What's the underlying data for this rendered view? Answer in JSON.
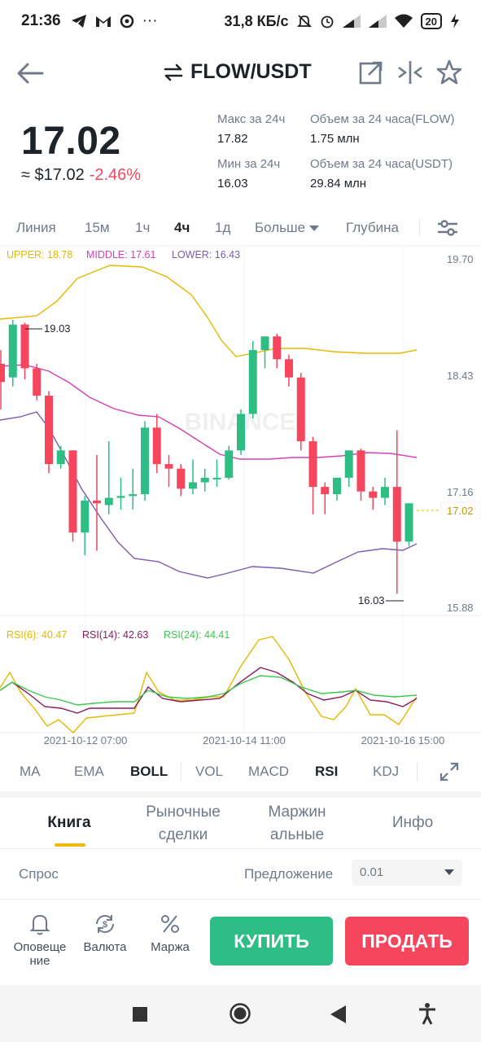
{
  "status_bar": {
    "time": "21:36",
    "more": "···",
    "speed": "31,8 КБ/с",
    "battery": "20"
  },
  "header": {
    "pair": "FLOW/USDT"
  },
  "price": {
    "last": "17.02",
    "fiat": "≈ $17.02",
    "change": "-2.46%"
  },
  "stats": {
    "high_label": "Макс за 24ч",
    "high_value": "17.82",
    "low_label": "Мин за 24ч",
    "low_value": "16.03",
    "vol_flow_label": "Объем за 24 часа(FLOW)",
    "vol_flow_value": "1.75 млн",
    "vol_usdt_label": "Объем за 24 часа(USDT)",
    "vol_usdt_value": "29.84 млн"
  },
  "intervals": {
    "line": "Линия",
    "m15": "15м",
    "h1": "1ч",
    "h4": "4ч",
    "d1": "1д",
    "more": "Больше",
    "depth": "Глубина"
  },
  "chart_data": {
    "type": "candlestick",
    "watermark": "BINANCE",
    "boll": {
      "upper_label": "UPPER: 18.78",
      "middle_label": "MIDDLE: 17.61",
      "lower_label": "LOWER: 16.43"
    },
    "price_axis": [
      "19.70",
      "18.43",
      "17.16",
      "15.88"
    ],
    "price_range": [
      15.88,
      19.7
    ],
    "last_price": "17.02",
    "high_marker": "19.03",
    "low_marker": "16.03",
    "rsi": {
      "rsi6_label": "RSI(6): 40.47",
      "rsi14_label": "RSI(14): 42.63",
      "rsi24_label": "RSI(24): 44.41"
    },
    "time_axis": [
      "2021-10-12 07:00",
      "2021-10-14 11:00",
      "2021-10-16 15:00"
    ],
    "candles": [
      {
        "o": 18.55,
        "h": 18.7,
        "l": 18.05,
        "c": 18.35
      },
      {
        "o": 18.4,
        "h": 19.03,
        "l": 18.3,
        "c": 18.98
      },
      {
        "o": 18.98,
        "h": 19.0,
        "l": 18.38,
        "c": 18.5
      },
      {
        "o": 18.5,
        "h": 18.55,
        "l": 18.15,
        "c": 18.2
      },
      {
        "o": 18.2,
        "h": 18.25,
        "l": 17.35,
        "c": 17.45
      },
      {
        "o": 17.45,
        "h": 17.65,
        "l": 17.4,
        "c": 17.6
      },
      {
        "o": 17.6,
        "h": 17.6,
        "l": 16.6,
        "c": 16.7
      },
      {
        "o": 16.7,
        "h": 17.1,
        "l": 16.45,
        "c": 17.05
      },
      {
        "o": 17.05,
        "h": 17.55,
        "l": 16.5,
        "c": 17.02
      },
      {
        "o": 17.0,
        "h": 17.7,
        "l": 16.9,
        "c": 17.08
      },
      {
        "o": 17.08,
        "h": 17.3,
        "l": 16.95,
        "c": 17.1
      },
      {
        "o": 17.1,
        "h": 17.4,
        "l": 16.95,
        "c": 17.12
      },
      {
        "o": 17.12,
        "h": 17.92,
        "l": 17.05,
        "c": 17.85
      },
      {
        "o": 17.85,
        "h": 18.0,
        "l": 17.35,
        "c": 17.45
      },
      {
        "o": 17.45,
        "h": 17.55,
        "l": 17.2,
        "c": 17.4
      },
      {
        "o": 17.4,
        "h": 17.45,
        "l": 17.1,
        "c": 17.18
      },
      {
        "o": 17.18,
        "h": 17.5,
        "l": 17.12,
        "c": 17.25
      },
      {
        "o": 17.25,
        "h": 17.4,
        "l": 17.15,
        "c": 17.3
      },
      {
        "o": 17.3,
        "h": 17.5,
        "l": 17.2,
        "c": 17.3
      },
      {
        "o": 17.3,
        "h": 17.65,
        "l": 17.28,
        "c": 17.6
      },
      {
        "o": 17.6,
        "h": 18.05,
        "l": 17.55,
        "c": 18.0
      },
      {
        "o": 18.0,
        "h": 18.8,
        "l": 17.95,
        "c": 18.7
      },
      {
        "o": 18.7,
        "h": 18.85,
        "l": 18.5,
        "c": 18.85
      },
      {
        "o": 18.85,
        "h": 18.88,
        "l": 18.5,
        "c": 18.6
      },
      {
        "o": 18.6,
        "h": 18.65,
        "l": 18.3,
        "c": 18.4
      },
      {
        "o": 18.4,
        "h": 18.45,
        "l": 17.6,
        "c": 17.7
      },
      {
        "o": 17.7,
        "h": 17.75,
        "l": 16.9,
        "c": 17.2
      },
      {
        "o": 17.2,
        "h": 17.25,
        "l": 16.9,
        "c": 17.12
      },
      {
        "o": 17.12,
        "h": 17.3,
        "l": 17.05,
        "c": 17.3
      },
      {
        "o": 17.3,
        "h": 17.6,
        "l": 17.2,
        "c": 17.6
      },
      {
        "o": 17.6,
        "h": 17.62,
        "l": 17.05,
        "c": 17.15
      },
      {
        "o": 17.15,
        "h": 17.2,
        "l": 16.95,
        "c": 17.08
      },
      {
        "o": 17.08,
        "h": 17.3,
        "l": 17.0,
        "c": 17.2
      },
      {
        "o": 17.2,
        "h": 17.82,
        "l": 16.03,
        "c": 16.6
      },
      {
        "o": 16.6,
        "h": 17.02,
        "l": 16.55,
        "c": 17.02
      }
    ]
  },
  "indicators": {
    "ma": "MA",
    "ema": "EMA",
    "boll": "BOLL",
    "vol": "VOL",
    "macd": "MACD",
    "rsi": "RSI",
    "kdj": "KDJ"
  },
  "book_tabs": {
    "book": "Книга",
    "trades_1": "Рыночные",
    "trades_2": "сделки",
    "margin_1": "Маржин",
    "margin_2": "альные",
    "info": "Инфо"
  },
  "book_header": {
    "bid": "Спрос",
    "ask": "Предложение",
    "precision": "0.01"
  },
  "actions": {
    "alerts_1": "Оповеще",
    "alerts_2": "ние",
    "currency": "Валюта",
    "margin": "Маржа",
    "buy": "КУПИТЬ",
    "sell": "ПРОДАТЬ"
  },
  "colors": {
    "up": "#2ebd85",
    "down": "#f6465d",
    "accent": "#f0b90b",
    "upper": "#e6b800",
    "middle": "#d63fb5",
    "lower": "#7b5cb0",
    "rsi6": "#e6b800",
    "rsi14": "#8b1a5e",
    "rsi24": "#3cc94b"
  }
}
